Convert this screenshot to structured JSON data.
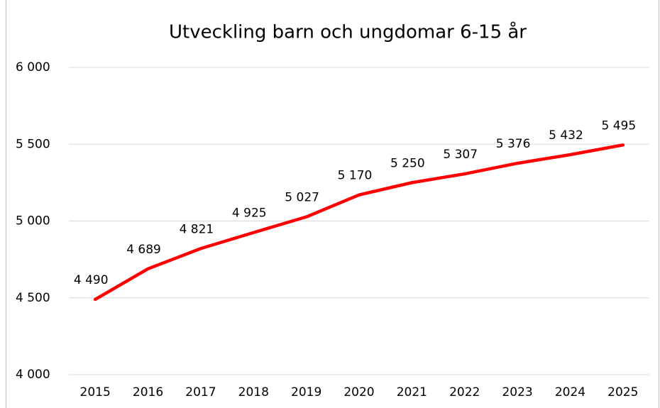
{
  "chart_data": {
    "type": "line",
    "title": "Utveckling barn och ungdomar 6-15 år",
    "categories": [
      "2015",
      "2016",
      "2017",
      "2018",
      "2019",
      "2020",
      "2021",
      "2022",
      "2023",
      "2024",
      "2025"
    ],
    "series": [
      {
        "name": "Barn och ungdomar 6-15 år",
        "color": "#ff0000",
        "values": [
          4490,
          4689,
          4821,
          4925,
          5027,
          5170,
          5250,
          5307,
          5376,
          5432,
          5495
        ],
        "value_labels": [
          "4 490",
          "4 689",
          "4 821",
          "4 925",
          "5 027",
          "5 170",
          "5 250",
          "5 307",
          "5 376",
          "5 432",
          "5 495"
        ]
      }
    ],
    "ylim": [
      4000,
      6000
    ],
    "yticks": [
      {
        "value": 4000,
        "label": "4 000"
      },
      {
        "value": 4500,
        "label": "4 500"
      },
      {
        "value": 5000,
        "label": "5 000"
      },
      {
        "value": 5500,
        "label": "5 500"
      },
      {
        "value": 6000,
        "label": "6 000"
      }
    ],
    "grid": true,
    "legend": false
  }
}
